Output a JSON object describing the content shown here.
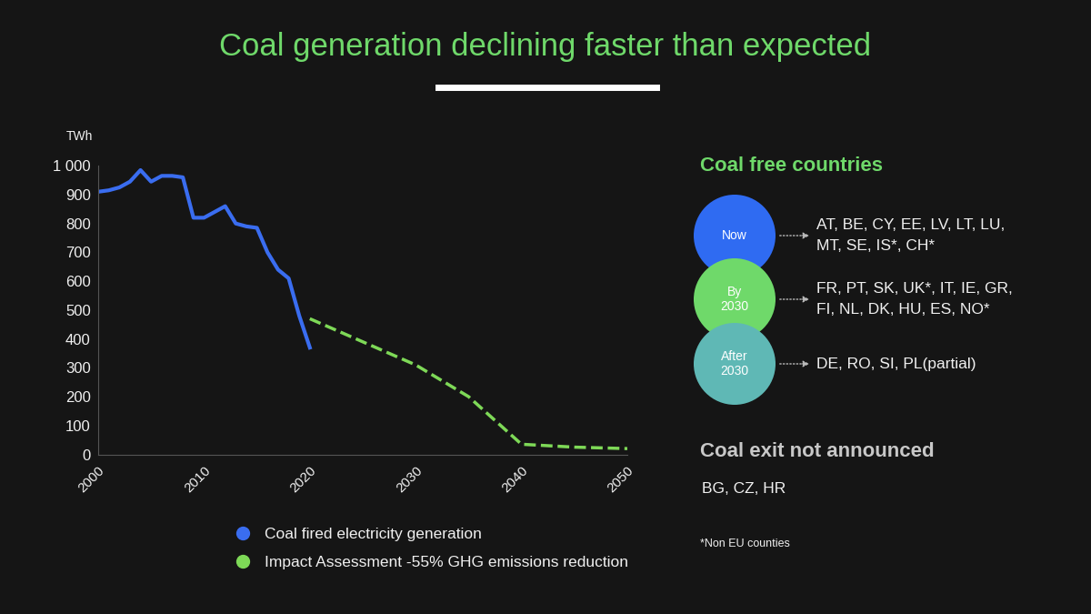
{
  "chart_data": {
    "type": "line",
    "title": "Coal generation declining faster than expected",
    "y_label": "TWh",
    "xlim": [
      2000,
      2050
    ],
    "xticks": [
      2000,
      2010,
      2020,
      2030,
      2040,
      2050
    ],
    "ylim": [
      0,
      1000
    ],
    "yticks": [
      0,
      100,
      200,
      300,
      400,
      500,
      600,
      700,
      800,
      900,
      {
        "value": 1000,
        "label": "1 000"
      }
    ],
    "grid": false,
    "legend": "lower left",
    "series": [
      {
        "name": "Coal fired electricity generation",
        "color": "#3a6df0",
        "line_style": "solid",
        "x": [
          2000,
          2001,
          2002,
          2003,
          2004,
          2005,
          2006,
          2007,
          2008,
          2009,
          2010,
          2011,
          2012,
          2013,
          2014,
          2015,
          2016,
          2017,
          2018,
          2019,
          2020
        ],
        "values": [
          910,
          915,
          925,
          945,
          985,
          945,
          965,
          965,
          960,
          820,
          820,
          840,
          860,
          800,
          790,
          785,
          700,
          640,
          610,
          480,
          370
        ]
      },
      {
        "name": "Impact Assessment -55% GHG emissions reduction",
        "color": "#7ed957",
        "line_style": "dashed",
        "x": [
          2020,
          2025,
          2030,
          2035,
          2040,
          2045,
          2050
        ],
        "values": [
          470,
          390,
          310,
          200,
          35,
          25,
          20
        ]
      }
    ]
  },
  "side_panel": {
    "heading": "Coal free countries",
    "groups": [
      {
        "label": "Now",
        "color": "#2f6bf2",
        "countries": "AT, BE, CY, EE, LV, LT, LU, MT, SE, IS*, CH*"
      },
      {
        "label": "By 2030",
        "color": "#6fd96a",
        "countries": "FR, PT, SK, UK*, IT, IE, GR, FI, NL, DK, HU, ES, NO*"
      },
      {
        "label": "After 2030",
        "color": "#5fb8b5",
        "countries": "DE, RO, SI, PL(partial)"
      }
    ],
    "no_exit": {
      "heading": "Coal exit not announced",
      "countries": "BG, CZ, HR"
    },
    "footnote": "*Non EU counties"
  }
}
